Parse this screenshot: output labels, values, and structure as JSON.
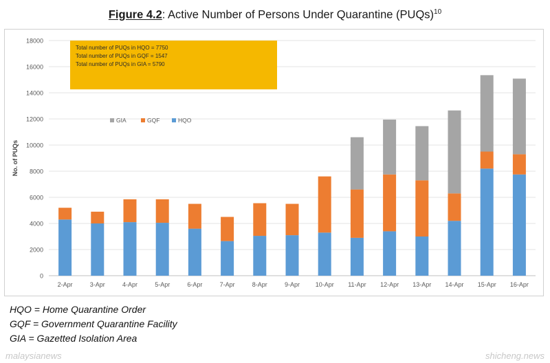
{
  "title": {
    "figure": "Figure 4.2",
    "text": ": Active Number of Persons Under Quarantine (PUQs)",
    "sup": "10"
  },
  "summary_box": {
    "color": "#F5B800",
    "lines": [
      "Total number of PUQs in HQO = 7750",
      "Total number of PUQs in GQF = 1547",
      "Total number of PUQs in GIA = 5790"
    ]
  },
  "chart_data": {
    "type": "bar",
    "stacked": true,
    "categories": [
      "2-Apr",
      "3-Apr",
      "4-Apr",
      "5-Apr",
      "6-Apr",
      "7-Apr",
      "8-Apr",
      "9-Apr",
      "10-Apr",
      "11-Apr",
      "12-Apr",
      "13-Apr",
      "14-Apr",
      "15-Apr",
      "16-Apr"
    ],
    "series": [
      {
        "name": "HQO",
        "color": "#5B9BD5",
        "values": [
          4300,
          4000,
          4100,
          4050,
          3600,
          2650,
          3050,
          3100,
          3300,
          2900,
          3400,
          3000,
          4200,
          8200,
          7750
        ]
      },
      {
        "name": "GQF",
        "color": "#ED7D31",
        "values": [
          900,
          900,
          1750,
          1800,
          1900,
          1850,
          2500,
          2400,
          4300,
          3700,
          4350,
          4300,
          2100,
          1300,
          1547
        ]
      },
      {
        "name": "GIA",
        "color": "#A5A5A5",
        "values": [
          0,
          0,
          0,
          0,
          0,
          0,
          0,
          0,
          0,
          4000,
          4200,
          4150,
          6350,
          5850,
          5790
        ]
      }
    ],
    "legend_order": [
      "GIA",
      "GQF",
      "HQO"
    ],
    "legend_position": "top-left",
    "ylabel": "No. of PUQs",
    "ylim": [
      0,
      18000
    ],
    "yticks": [
      0,
      2000,
      4000,
      6000,
      8000,
      10000,
      12000,
      14000,
      16000,
      18000
    ],
    "grid": true
  },
  "notes": [
    "HQO = Home Quarantine Order",
    "GQF = Government Quarantine Facility",
    "GIA = Gazetted Isolation Area"
  ],
  "watermark": {
    "left": "malaysianews",
    "right": "shicheng.news"
  }
}
